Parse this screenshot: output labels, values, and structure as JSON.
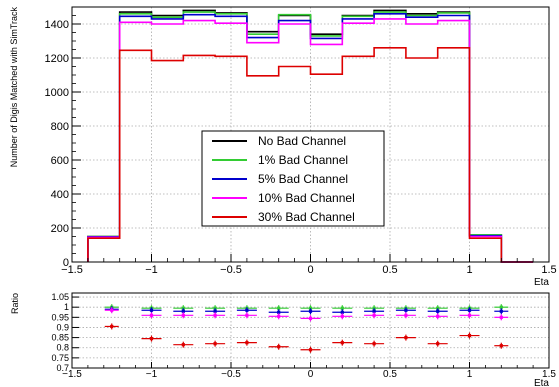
{
  "chart_data": [
    {
      "type": "line",
      "title": "",
      "xlabel": "Eta",
      "ylabel": "Number of Digis Matched with SimTrack",
      "xlim": [
        -1.5,
        1.5
      ],
      "ylim": [
        0,
        1500
      ],
      "grid": true,
      "legend_position": "center",
      "x_ticks": [
        "−1.5",
        "−1",
        "−0.5",
        "0",
        "0.5",
        "1",
        "1.5"
      ],
      "y_ticks": [
        "0",
        "200",
        "400",
        "600",
        "800",
        "1000",
        "1200",
        "1400"
      ],
      "bin_edges": [
        -1.4,
        -1.2,
        -1.0,
        -0.8,
        -0.6,
        -0.4,
        -0.2,
        0.0,
        0.2,
        0.4,
        0.6,
        0.8,
        1.0,
        1.2,
        1.4
      ],
      "series": [
        {
          "name": "No Bad Channel",
          "color": "#000000",
          "values": [
            150,
            1470,
            1450,
            1480,
            1465,
            1355,
            1450,
            1340,
            1450,
            1480,
            1460,
            1470,
            160,
            0
          ]
        },
        {
          "name": "1% Bad Channel",
          "color": "#33cc33",
          "values": [
            150,
            1460,
            1440,
            1470,
            1460,
            1340,
            1455,
            1330,
            1445,
            1470,
            1450,
            1465,
            160,
            0
          ]
        },
        {
          "name": "5% Bad Channel",
          "color": "#0000cc",
          "values": [
            148,
            1445,
            1430,
            1455,
            1445,
            1320,
            1420,
            1315,
            1430,
            1460,
            1440,
            1450,
            155,
            0
          ]
        },
        {
          "name": "10% Bad Channel",
          "color": "#ff00ff",
          "values": [
            145,
            1410,
            1400,
            1420,
            1405,
            1290,
            1400,
            1280,
            1405,
            1430,
            1400,
            1420,
            150,
            0
          ]
        },
        {
          "name": "30% Bad Channel",
          "color": "#dd0000",
          "values": [
            140,
            1245,
            1185,
            1215,
            1210,
            1095,
            1150,
            1105,
            1210,
            1260,
            1200,
            1260,
            140,
            0
          ]
        }
      ]
    },
    {
      "type": "scatter",
      "title": "",
      "xlabel": "Eta",
      "ylabel": "Ratio",
      "xlim": [
        -1.5,
        1.5
      ],
      "ylim": [
        0.7,
        1.07
      ],
      "grid": true,
      "x_ticks": [
        "−1.5",
        "−1",
        "−0.5",
        "0",
        "0.5",
        "1",
        "1.5"
      ],
      "y_ticks": [
        "0.7",
        "0.75",
        "0.8",
        "0.85",
        "0.9",
        "0.95",
        "1",
        "1.05"
      ],
      "bin_centers": [
        -1.25,
        -1.0,
        -0.8,
        -0.6,
        -0.4,
        -0.2,
        0.0,
        0.2,
        0.4,
        0.6,
        0.8,
        1.0,
        1.2
      ],
      "series": [
        {
          "name": "1% Bad Channel",
          "color": "#33cc33",
          "values": [
            1.0,
            0.995,
            0.995,
            0.995,
            0.995,
            0.995,
            0.995,
            0.995,
            0.995,
            0.995,
            0.995,
            0.995,
            1.0
          ]
        },
        {
          "name": "5% Bad Channel",
          "color": "#0000cc",
          "values": [
            0.99,
            0.985,
            0.98,
            0.98,
            0.985,
            0.975,
            0.98,
            0.975,
            0.98,
            0.985,
            0.98,
            0.985,
            0.98
          ]
        },
        {
          "name": "10% Bad Channel",
          "color": "#ff00ff",
          "values": [
            0.985,
            0.96,
            0.96,
            0.96,
            0.96,
            0.955,
            0.945,
            0.955,
            0.96,
            0.96,
            0.955,
            0.96,
            0.95
          ]
        },
        {
          "name": "30% Bad Channel",
          "color": "#dd0000",
          "values": [
            0.905,
            0.845,
            0.815,
            0.82,
            0.825,
            0.805,
            0.79,
            0.825,
            0.82,
            0.85,
            0.82,
            0.86,
            0.81
          ]
        }
      ]
    }
  ]
}
